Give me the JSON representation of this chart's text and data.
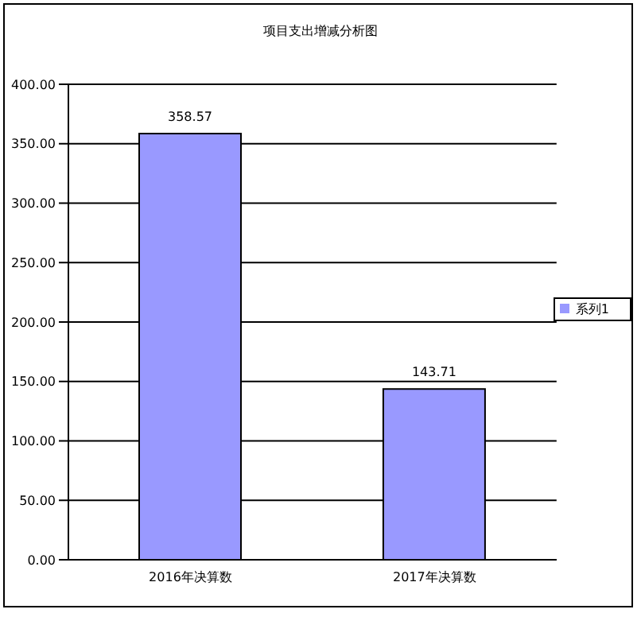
{
  "chart_data": {
    "type": "bar",
    "title": "项目支出增减分析图",
    "categories": [
      "2016年决算数",
      "2017年决算数"
    ],
    "series": [
      {
        "name": "系列1",
        "color": "#9999ff",
        "values": [
          358.57,
          143.71
        ]
      }
    ],
    "ylim": [
      0,
      400
    ],
    "yticks": [
      {
        "value": 0,
        "label": "0.00"
      },
      {
        "value": 50,
        "label": "50.00"
      },
      {
        "value": 100,
        "label": "100.00"
      },
      {
        "value": 150,
        "label": "150.00"
      },
      {
        "value": 200,
        "label": "200.00"
      },
      {
        "value": 250,
        "label": "250.00"
      },
      {
        "value": 300,
        "label": "300.00"
      },
      {
        "value": 350,
        "label": "350.00"
      },
      {
        "value": 400,
        "label": "400.00"
      }
    ],
    "grid": "y",
    "legend": "right",
    "data_labels": true
  }
}
